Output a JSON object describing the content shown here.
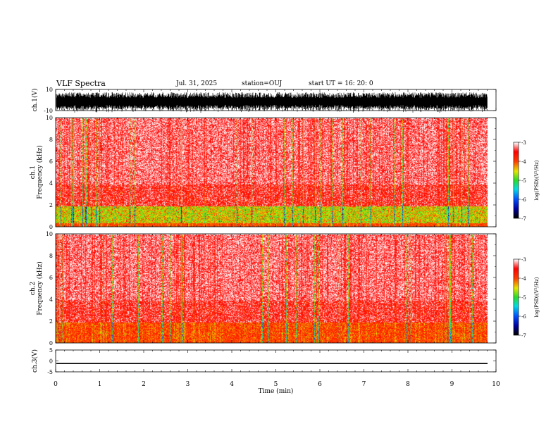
{
  "header": {
    "title": "VLF Spectra",
    "date": "Jul. 31, 2025",
    "station": "station=OUJ",
    "start_ut": "start UT =   16: 20: 0"
  },
  "chart_data": [
    {
      "type": "line",
      "name": "ch1-waveform",
      "ylabel": "ch.1(V)",
      "ylim": [
        -10,
        10
      ],
      "yticks": [
        "10",
        "-10"
      ],
      "xlim": [
        0,
        10
      ]
    },
    {
      "type": "heatmap",
      "name": "ch1-spectrogram",
      "ylabel": "ch.1\nFrequency (kHz)",
      "ylabel_line1": "ch.1",
      "ylabel_line2": "Frequency (kHz)",
      "ylim": [
        0,
        10
      ],
      "yticks": [
        "0",
        "2",
        "4",
        "6",
        "8",
        "10"
      ],
      "xlim": [
        0,
        10
      ],
      "data_end_min": 9.82,
      "colorbar": {
        "label": "log(PSD)(V²/Hz)",
        "range": [
          -7,
          -3
        ],
        "ticks": [
          "-3",
          "-4",
          "-5",
          "-6",
          "-7"
        ]
      }
    },
    {
      "type": "heatmap",
      "name": "ch2-spectrogram",
      "ylabel_line1": "ch.2",
      "ylabel_line2": "Frequency (kHz)",
      "ylim": [
        0,
        10
      ],
      "yticks": [
        "0",
        "2",
        "4",
        "6",
        "8",
        "10"
      ],
      "xlim": [
        0,
        10
      ],
      "data_end_min": 9.82,
      "colorbar": {
        "label": "log(PSD)(V²/Hz)",
        "range": [
          -7,
          -3
        ],
        "ticks": [
          "-3",
          "-4",
          "-5",
          "-6",
          "-7"
        ]
      }
    },
    {
      "type": "line",
      "name": "ch3-trace",
      "ylabel": "ch.3(V)",
      "ylim": [
        -5,
        5
      ],
      "yticks": [
        "5",
        "0",
        "-5"
      ],
      "xlim": [
        0,
        10
      ],
      "values_constant": -1.2
    }
  ],
  "xaxis": {
    "label": "Time (min)",
    "ticks": [
      "0",
      "1",
      "2",
      "3",
      "4",
      "5",
      "6",
      "7",
      "8",
      "9",
      "10"
    ]
  }
}
